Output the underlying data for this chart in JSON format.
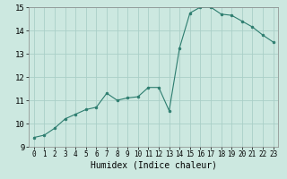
{
  "x": [
    0,
    1,
    2,
    3,
    4,
    5,
    6,
    7,
    8,
    9,
    10,
    11,
    12,
    13,
    14,
    15,
    16,
    17,
    18,
    19,
    20,
    21,
    22,
    23
  ],
  "y": [
    9.4,
    9.5,
    9.8,
    10.2,
    10.4,
    10.6,
    10.7,
    11.3,
    11.0,
    11.1,
    11.15,
    11.55,
    11.55,
    10.55,
    13.25,
    14.75,
    15.0,
    15.0,
    14.7,
    14.65,
    14.4,
    14.15,
    13.8,
    13.5
  ],
  "xlabel": "Humidex (Indice chaleur)",
  "line_color": "#2d7d6f",
  "marker_color": "#2d7d6f",
  "bg_color": "#cce8e0",
  "grid_color": "#aacfc8",
  "ylim": [
    9,
    15
  ],
  "xlim_min": -0.5,
  "xlim_max": 23.5,
  "yticks": [
    9,
    10,
    11,
    12,
    13,
    14,
    15
  ],
  "xticks": [
    0,
    1,
    2,
    3,
    4,
    5,
    6,
    7,
    8,
    9,
    10,
    11,
    12,
    13,
    14,
    15,
    16,
    17,
    18,
    19,
    20,
    21,
    22,
    23
  ]
}
